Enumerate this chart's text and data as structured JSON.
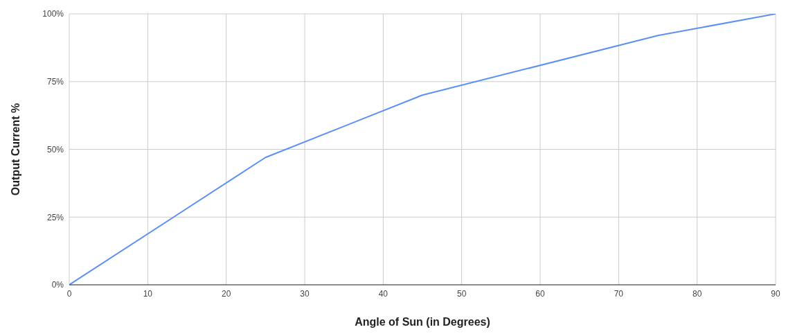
{
  "chart_data": {
    "type": "line",
    "xlabel": "Angle of Sun (in Degrees)",
    "ylabel": "Output Current %",
    "x": [
      0,
      25,
      45,
      75,
      90
    ],
    "series": [
      {
        "color": "#5b8ff5",
        "values": [
          0,
          47,
          70,
          92,
          100
        ]
      }
    ],
    "xlim": [
      0,
      90
    ],
    "xticks": [
      0,
      10,
      20,
      30,
      40,
      50,
      60,
      70,
      80,
      90
    ],
    "ylim": [
      0,
      100
    ],
    "yticks": [
      {
        "value": 0,
        "label": "0%"
      },
      {
        "value": 25,
        "label": "25%"
      },
      {
        "value": 50,
        "label": "50%"
      },
      {
        "value": 75,
        "label": "75%"
      },
      {
        "value": 100,
        "label": "100%"
      }
    ],
    "grid": true,
    "legend": false,
    "marker": "none",
    "line_style": "solid"
  }
}
